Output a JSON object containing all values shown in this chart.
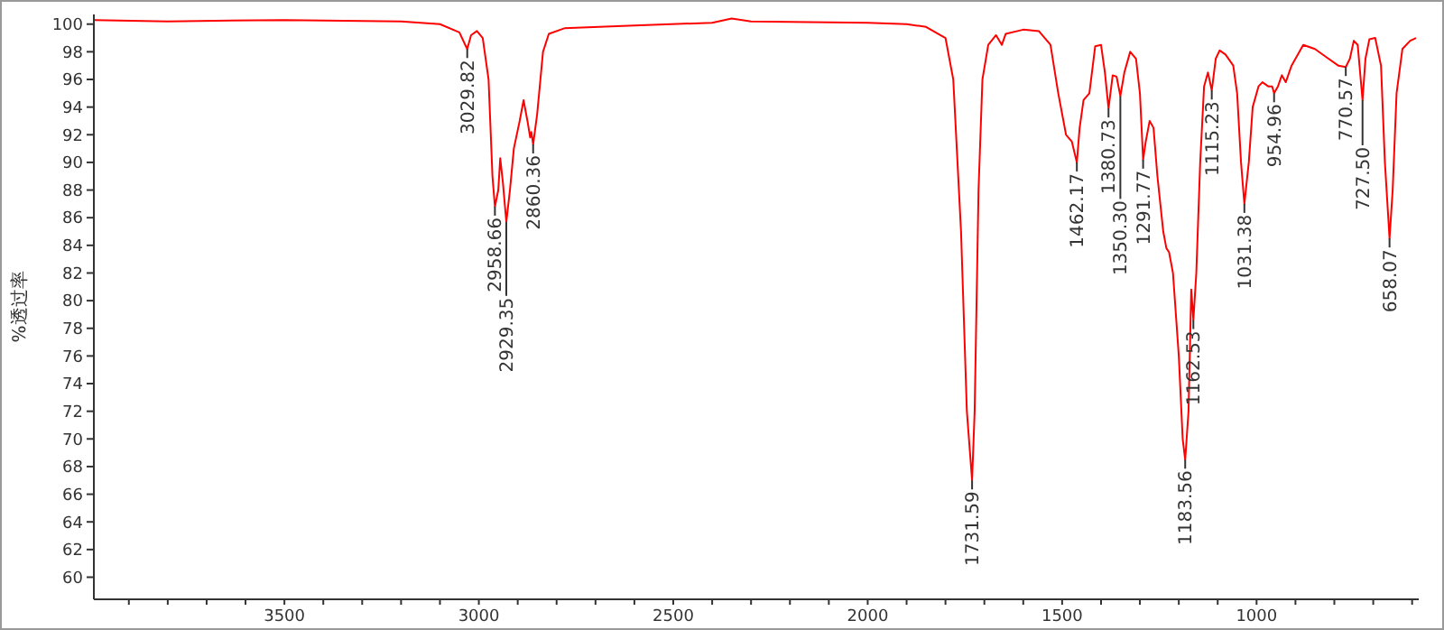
{
  "chart_data": {
    "type": "line",
    "ylabel": "%透过率",
    "xlim": [
      3990,
      583
    ],
    "ylim": [
      58.4,
      100.7
    ],
    "xticks": [
      {
        "value": 3900,
        "label": null
      },
      {
        "value": 3800,
        "label": null
      },
      {
        "value": 3700,
        "label": null
      },
      {
        "value": 3600,
        "label": null
      },
      3500,
      {
        "value": 3400,
        "label": null
      },
      {
        "value": 3300,
        "label": null
      },
      {
        "value": 3200,
        "label": null
      },
      {
        "value": 3100,
        "label": null
      },
      3000,
      {
        "value": 2900,
        "label": null
      },
      {
        "value": 2800,
        "label": null
      },
      {
        "value": 2700,
        "label": null
      },
      {
        "value": 2600,
        "label": null
      },
      2500,
      {
        "value": 2400,
        "label": null
      },
      {
        "value": 2300,
        "label": null
      },
      {
        "value": 2200,
        "label": null
      },
      {
        "value": 2100,
        "label": null
      },
      2000,
      {
        "value": 1900,
        "label": null
      },
      {
        "value": 1800,
        "label": null
      },
      {
        "value": 1700,
        "label": null
      },
      {
        "value": 1600,
        "label": null
      },
      1500,
      {
        "value": 1400,
        "label": null
      },
      {
        "value": 1300,
        "label": null
      },
      {
        "value": 1200,
        "label": null
      },
      {
        "value": 1100,
        "label": null
      },
      1000,
      {
        "value": 900,
        "label": null
      },
      {
        "value": 800,
        "label": null
      },
      {
        "value": 700,
        "label": null
      },
      {
        "value": 600,
        "label": null
      }
    ],
    "yticks": [
      60,
      62,
      64,
      66,
      68,
      70,
      72,
      74,
      76,
      78,
      80,
      82,
      84,
      86,
      88,
      90,
      92,
      94,
      96,
      98,
      100
    ],
    "grid": false,
    "line_style": "solid",
    "series": [
      {
        "color": "#ff0000",
        "x": [
          3990,
          3800,
          3500,
          3200,
          3100,
          3050,
          3035,
          3029.82,
          3020,
          3005,
          2990,
          2975,
          2965,
          2958.66,
          2950,
          2945,
          2938,
          2929.35,
          2920,
          2910,
          2895,
          2885,
          2875,
          2868,
          2865,
          2860.36,
          2850,
          2835,
          2820,
          2780,
          2600,
          2400,
          2350,
          2300,
          2000,
          1900,
          1850,
          1800,
          1780,
          1760,
          1745,
          1731.59,
          1725,
          1715,
          1705,
          1690,
          1670,
          1655,
          1645,
          1600,
          1560,
          1530,
          1510,
          1490,
          1475,
          1462.17,
          1455,
          1445,
          1430,
          1415,
          1400,
          1390,
          1380.73,
          1370,
          1360,
          1350.3,
          1340,
          1325,
          1310,
          1300,
          1291.77,
          1285,
          1275,
          1265,
          1255,
          1240,
          1232,
          1225,
          1215,
          1200,
          1190,
          1183.56,
          1175,
          1168,
          1162.53,
          1155,
          1145,
          1135,
          1125,
          1115.23,
          1105,
          1095,
          1080,
          1060,
          1050,
          1040,
          1031.38,
          1020,
          1010,
          995,
          985,
          970,
          960,
          954.96,
          945,
          935,
          925,
          910,
          880,
          850,
          820,
          790,
          770.57,
          760,
          750,
          740,
          727.5,
          720,
          710,
          695,
          680,
          670,
          658.07,
          650,
          640,
          625,
          605,
          590
        ],
        "values": [
          100.3,
          100.2,
          100.3,
          100.2,
          100.0,
          99.4,
          98.5,
          98.2,
          99.2,
          99.5,
          99.0,
          96,
          89,
          86.8,
          88,
          90.3,
          88.5,
          85.7,
          88,
          91,
          93,
          94.5,
          93,
          91.8,
          92.2,
          91.3,
          93.5,
          98,
          99.3,
          99.7,
          99.9,
          100.1,
          100.4,
          100.2,
          100.1,
          100.0,
          99.8,
          99.0,
          96,
          85,
          72,
          67.0,
          72,
          88,
          96,
          98.5,
          99.2,
          98.5,
          99.3,
          99.6,
          99.5,
          98.5,
          95,
          92,
          91.5,
          90.0,
          92.5,
          94.5,
          95,
          98.4,
          98.5,
          96.5,
          93.9,
          96.3,
          96.2,
          94.8,
          96.5,
          98,
          97.5,
          95,
          90.2,
          91.5,
          93.0,
          92.5,
          89,
          85,
          83.8,
          83.5,
          82,
          76,
          70,
          68.5,
          72,
          80.8,
          78.6,
          82,
          90,
          95.5,
          96.5,
          95.2,
          97.5,
          98.1,
          97.8,
          97.0,
          95,
          90,
          87.0,
          90,
          94,
          95.5,
          95.8,
          95.5,
          95.5,
          95.0,
          95.5,
          96.3,
          95.8,
          97,
          98.5,
          98.2,
          97.6,
          97,
          96.9,
          97.5,
          98.8,
          98.5,
          94.5,
          97.5,
          98.9,
          99.0,
          97,
          90,
          84.5,
          88,
          95,
          98.2,
          98.8,
          99.0
        ]
      }
    ],
    "annotations": [
      {
        "text": "3029.82",
        "x": 3029.82,
        "y": 98.2
      },
      {
        "text": "2958.66",
        "x": 2958.66,
        "y": 86.8
      },
      {
        "text": "2929.35",
        "x": 2929.35,
        "y": 85.7
      },
      {
        "text": "2860.36",
        "x": 2860.36,
        "y": 91.3
      },
      {
        "text": "1731.59",
        "x": 1731.59,
        "y": 67.0
      },
      {
        "text": "1462.17",
        "x": 1462.17,
        "y": 90.0
      },
      {
        "text": "1380.73",
        "x": 1380.73,
        "y": 93.9
      },
      {
        "text": "1350.30",
        "x": 1350.3,
        "y": 94.8
      },
      {
        "text": "1291.77",
        "x": 1291.77,
        "y": 90.2
      },
      {
        "text": "1183.56",
        "x": 1183.56,
        "y": 68.5
      },
      {
        "text": "1162.53",
        "x": 1162.53,
        "y": 78.6
      },
      {
        "text": "1115.23",
        "x": 1115.23,
        "y": 95.2
      },
      {
        "text": "1031.38",
        "x": 1031.38,
        "y": 87.0
      },
      {
        "text": "954.96",
        "x": 954.96,
        "y": 95.0
      },
      {
        "text": "770.57",
        "x": 770.57,
        "y": 96.9
      },
      {
        "text": "727.50",
        "x": 727.5,
        "y": 94.5
      },
      {
        "text": "658.07",
        "x": 658.07,
        "y": 84.5
      }
    ]
  }
}
